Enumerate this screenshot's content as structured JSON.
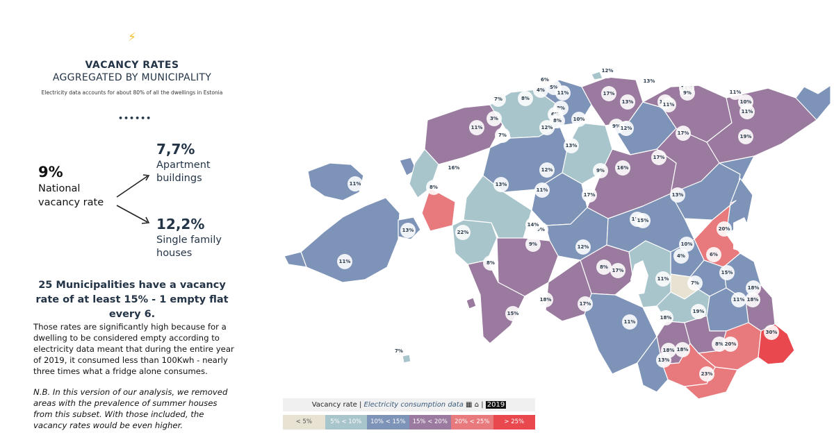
{
  "header": {
    "icon": "lightning-icon",
    "title": "VACANCY RATES",
    "subtitle": "AGGREGATED BY MUNICIPALITY",
    "note": "Electricity data accounts for about 80% of all the dwellings in Estonia",
    "divider": "••••••"
  },
  "national": {
    "value": "9%",
    "label": "National vacancy rate"
  },
  "apartments": {
    "value": "7,7%",
    "label": "Apartment buildings"
  },
  "family": {
    "value": "12,2%",
    "label": "Single family houses"
  },
  "headline": "25 Municipalities have a vacancy rate of at least 15% - 1 empty flat every 6.",
  "paragraph": "Those rates are significantly high because for a dwelling to be considered empty according to electricity data meant that during the entire year of 2019, it consumed less than 100Kwh - nearly three times what a fridge alone consumes.",
  "nb": "N.B. In this version of our analysis, we removed areas with the prevalence of summer houses from this subset. With those included, the vacancy rates would be even higher.",
  "legend": {
    "title_prefix": "Vacancy rate |",
    "title_link": "Electricity consumption data",
    "title_sep": "|",
    "year": "2019",
    "icons": "building-icon house-icon",
    "items": [
      {
        "label": "< 5%",
        "color": "#e8e2d2"
      },
      {
        "label": "5% < 10%",
        "color": "#a9c5cc"
      },
      {
        "label": "10% < 15%",
        "color": "#7d93b8"
      },
      {
        "label": "15% < 20%",
        "color": "#9a7a9e"
      },
      {
        "label": "20% < 25%",
        "color": "#e87a7e"
      },
      {
        "label": "> 25%",
        "color": "#e8484e"
      }
    ]
  },
  "map_labels": [
    "12%",
    "13%",
    "16%",
    "6%",
    "5%",
    "11%",
    "8%",
    "17%",
    "11%",
    "13%",
    "8%",
    "6%",
    "7%",
    "4%",
    "11%",
    "10%",
    "9%",
    "11%",
    "11%",
    "12%",
    "3%",
    "8%",
    "10%",
    "17%",
    "19%",
    "7%",
    "9%",
    "13%",
    "12%",
    "17%",
    "11%",
    "16%",
    "12%",
    "9%",
    "13%",
    "9%",
    "16%",
    "8%",
    "11%",
    "13%",
    "17%",
    "15%",
    "11%",
    "13%",
    "22%",
    "14%",
    "15%",
    "20%",
    "8%",
    "9%",
    "12%",
    "10%",
    "4%",
    "6%",
    "11%",
    "8%",
    "17%",
    "11%",
    "7%",
    "15%",
    "18%",
    "15%",
    "18%",
    "17%",
    "11%",
    "18%",
    "19%",
    "11%",
    "18%",
    "30%",
    "8%",
    "20%",
    "13%",
    "18%",
    "23%",
    "18%",
    "7%"
  ]
}
